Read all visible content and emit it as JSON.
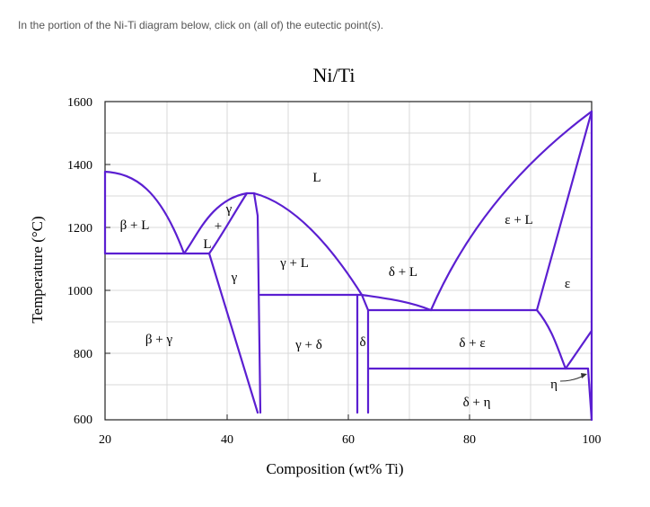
{
  "prompt": "In the portion of the Ni-Ti diagram below, click on (all of) the eutectic point(s).",
  "diagram": {
    "title": "Ni/Ti",
    "xlabel": "Composition (wt% Ti)",
    "ylabel": "Temperature (°C)",
    "x_ticks": [
      "20",
      "40",
      "60",
      "80",
      "100"
    ],
    "y_ticks": [
      "1600",
      "1400",
      "1200",
      "1000",
      "800",
      "600"
    ],
    "regions": {
      "L": "L",
      "beta_L": "β + L",
      "gamma_top": "γ",
      "plus": "+",
      "L_small": "L",
      "gamma_L": "γ + L",
      "gamma": "γ",
      "delta_L": "δ + L",
      "epsilon_L": "ε + L",
      "epsilon": "ε",
      "beta_gamma": "β + γ",
      "gamma_delta": "γ + δ",
      "delta": "δ",
      "delta_epsilon": "δ + ε",
      "delta_eta": "δ + η",
      "eta": "η"
    },
    "line_color": "#5b1fd1"
  }
}
